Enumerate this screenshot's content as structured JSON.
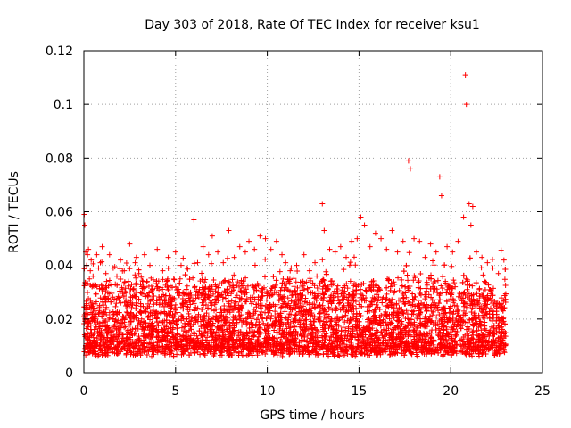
{
  "chart_data": {
    "type": "scatter",
    "title": "Day 303 of 2018, Rate Of TEC Index for receiver ksu1",
    "xlabel": "GPS time / hours",
    "ylabel": "ROTI / TECUs",
    "xlim": [
      0,
      25
    ],
    "ylim": [
      0,
      0.12
    ],
    "xticks": [
      "0",
      "5",
      "10",
      "15",
      "20",
      "25"
    ],
    "yticks": [
      "0",
      "0.02",
      "0.04",
      "0.06",
      "0.08",
      "0.1",
      "0.12"
    ],
    "grid": true,
    "marker": "+",
    "color": "#ff0000",
    "series": [
      {
        "x": [
          0.02,
          0.05,
          0.1,
          0.15,
          0.2,
          0.25,
          0.3,
          0.35,
          0.4,
          0.5,
          0.6,
          0.7,
          0.8,
          0.9,
          1.0,
          1.2,
          1.4,
          1.6,
          1.8,
          2.0,
          2.2,
          2.5,
          2.8,
          3.0,
          3.3,
          3.6,
          4.0,
          4.3,
          4.6,
          5.0,
          5.3,
          5.6,
          6.0,
          6.2,
          6.5,
          6.8,
          7.0,
          7.3,
          7.6,
          7.9,
          8.2,
          8.5,
          8.8,
          9.0,
          9.3,
          9.6,
          9.9,
          10.2,
          10.5,
          10.8,
          11.0,
          11.3,
          11.6,
          12.0,
          12.3,
          12.6,
          13.0,
          13.1,
          13.4,
          13.7,
          14.0,
          14.3,
          14.6,
          14.9,
          15.1,
          15.3,
          15.6,
          15.9,
          16.2,
          16.5,
          16.8,
          17.1,
          17.4,
          17.7,
          17.8,
          18.0,
          18.3,
          18.6,
          18.9,
          19.2,
          19.4,
          19.5,
          19.8,
          20.1,
          20.4,
          20.7,
          20.8,
          20.85,
          21.0,
          21.1,
          21.2,
          21.4,
          21.7,
          22.0,
          22.3,
          22.6,
          22.9
        ],
        "y": [
          0.059,
          0.055,
          0.045,
          0.04,
          0.044,
          0.046,
          0.035,
          0.038,
          0.042,
          0.036,
          0.033,
          0.044,
          0.039,
          0.041,
          0.047,
          0.037,
          0.044,
          0.039,
          0.036,
          0.042,
          0.038,
          0.048,
          0.041,
          0.037,
          0.044,
          0.04,
          0.046,
          0.038,
          0.043,
          0.045,
          0.04,
          0.039,
          0.057,
          0.041,
          0.047,
          0.044,
          0.051,
          0.045,
          0.041,
          0.053,
          0.043,
          0.047,
          0.045,
          0.049,
          0.046,
          0.051,
          0.05,
          0.046,
          0.049,
          0.044,
          0.041,
          0.039,
          0.04,
          0.044,
          0.038,
          0.041,
          0.063,
          0.053,
          0.046,
          0.045,
          0.047,
          0.043,
          0.049,
          0.05,
          0.058,
          0.055,
          0.047,
          0.052,
          0.05,
          0.046,
          0.053,
          0.045,
          0.049,
          0.079,
          0.076,
          0.05,
          0.049,
          0.043,
          0.048,
          0.045,
          0.073,
          0.066,
          0.047,
          0.045,
          0.049,
          0.058,
          0.111,
          0.1,
          0.063,
          0.055,
          0.062,
          0.045,
          0.043,
          0.041,
          0.039,
          0.037,
          0.042
        ]
      }
    ]
  }
}
